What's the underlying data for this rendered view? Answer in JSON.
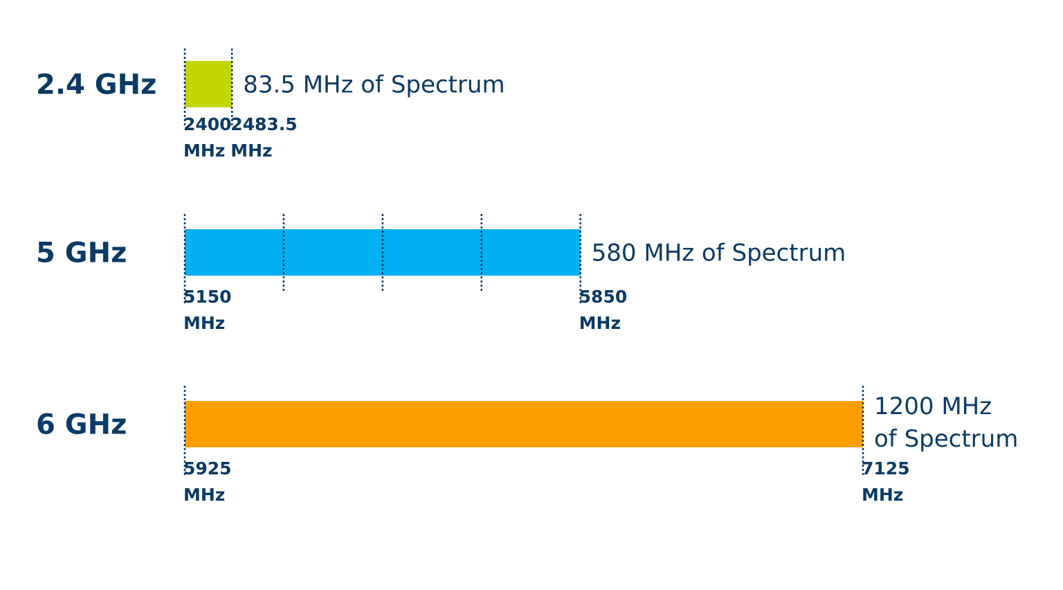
{
  "chart_data": {
    "type": "bar",
    "title": "",
    "xlabel": "",
    "ylabel": "",
    "unit": "MHz",
    "colors": {
      "text": "#0b3a66",
      "divider": "#0b3a66"
    },
    "bands": [
      {
        "label": "2.4 GHz",
        "start": 2400,
        "end": 2483.5,
        "spectrum_mhz": 83.5,
        "description_lines": [
          "83.5 MHz of Spectrum"
        ],
        "color": "#c4d600",
        "channel_dividers": [],
        "ticks": [
          {
            "value": "2400",
            "unit": "MHz"
          },
          {
            "value": "2483.5",
            "unit": "MHz"
          }
        ]
      },
      {
        "label": "5 GHz",
        "start": 5150,
        "end": 5850,
        "spectrum_mhz": 580,
        "description_lines": [
          "580 MHz of Spectrum"
        ],
        "color": "#00b0f0",
        "channel_dividers": 3,
        "ticks": [
          {
            "value": "5150",
            "unit": "MHz"
          },
          {
            "value": "5850",
            "unit": "MHz"
          }
        ]
      },
      {
        "label": "6 GHz",
        "start": 5925,
        "end": 7125,
        "spectrum_mhz": 1200,
        "description_lines": [
          "1200 MHz",
          "of Spectrum"
        ],
        "color": "#ff9e00",
        "channel_dividers": [],
        "ticks": [
          {
            "value": "5925",
            "unit": "MHz"
          },
          {
            "value": "7125",
            "unit": "MHz"
          }
        ]
      }
    ]
  }
}
